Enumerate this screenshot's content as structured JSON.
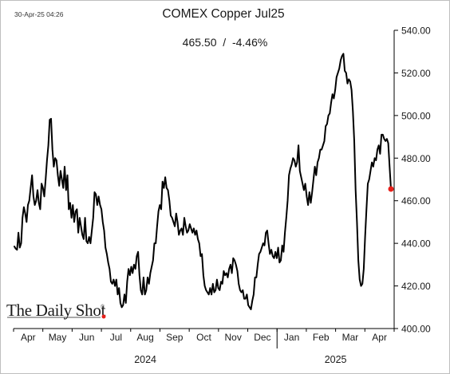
{
  "timestamp": "30-Apr-25 04:26",
  "chart_data": {
    "type": "line",
    "title": "COMEX Copper Jul25",
    "subtitle": "465.50  /  -4.46%",
    "xlabel": "",
    "ylabel": "",
    "ylim": [
      400,
      540
    ],
    "yticks": [
      "400.00",
      "420.00",
      "440.00",
      "460.00",
      "480.00",
      "500.00",
      "520.00",
      "540.00"
    ],
    "y_axis_position": "right",
    "grid": false,
    "month_labels": [
      "Apr",
      "May",
      "Jun",
      "Jul",
      "Aug",
      "Sep",
      "Oct",
      "Nov",
      "Dec",
      "Jan",
      "Feb",
      "Mar",
      "Apr"
    ],
    "year_labels": [
      "2024",
      "2025"
    ],
    "line_color": "#000000",
    "last_point_color": "#e8201a",
    "last_value": 465.5,
    "series": [
      {
        "values": [
          438.5,
          437.5,
          437,
          445,
          438,
          440,
          452,
          457,
          454,
          450,
          458,
          460,
          466,
          472,
          462,
          458,
          460,
          465,
          459,
          456,
          468,
          466,
          462,
          470,
          479,
          486,
          498,
          498.5,
          484,
          476,
          480,
          479,
          472,
          467,
          474,
          470,
          466,
          476,
          465,
          472,
          456,
          459,
          452,
          458,
          450,
          455,
          456,
          445,
          452,
          448,
          444,
          442,
          452,
          441,
          440,
          443,
          440,
          446,
          452,
          464,
          463,
          458,
          462,
          458,
          456,
          450,
          446,
          438,
          435,
          431,
          428,
          422,
          421,
          423,
          420,
          423,
          416,
          419,
          412,
          410,
          411,
          416,
          412,
          422,
          428,
          425,
          429,
          426,
          430,
          428,
          434,
          436,
          425,
          418,
          416,
          424,
          416,
          418,
          424,
          421,
          426,
          429,
          432,
          440,
          440,
          448,
          455,
          458,
          456,
          469,
          466,
          471,
          466,
          465,
          460,
          453,
          452,
          450,
          448,
          454,
          450,
          444,
          446,
          447,
          444,
          452,
          448,
          445,
          446,
          449,
          447,
          445,
          447,
          444,
          446,
          442,
          440,
          434,
          435,
          425,
          420,
          418,
          417,
          416,
          419,
          416,
          421,
          417,
          418,
          423,
          419,
          418,
          422,
          421,
          427,
          425,
          426,
          424,
          428,
          430,
          426,
          433,
          432,
          430,
          427,
          421,
          418,
          417,
          418,
          414,
          414,
          416,
          411,
          410,
          409,
          413,
          416,
          424,
          424,
          430,
          435,
          436,
          438,
          440,
          439,
          445,
          446,
          440,
          435,
          437,
          434,
          433,
          436,
          433,
          438,
          431,
          432,
          439,
          436,
          445,
          452,
          460,
          472,
          475,
          477,
          480,
          479,
          476,
          478,
          486,
          474,
          471,
          468,
          465,
          468,
          462,
          458,
          464,
          459,
          464,
          470,
          476,
          472,
          478,
          480,
          484,
          484,
          486,
          488,
          495,
          496,
          500,
          501,
          506,
          510,
          508,
          512,
          518,
          520,
          522,
          526,
          528,
          529,
          521,
          520,
          515,
          517,
          516,
          512,
          502,
          488,
          465,
          450,
          432,
          423,
          420,
          421,
          428,
          443,
          456,
          468,
          470,
          474,
          478,
          476,
          480,
          479,
          484,
          486,
          482,
          491,
          491,
          489,
          488,
          489,
          487,
          476,
          465.5
        ]
      }
    ]
  }
}
